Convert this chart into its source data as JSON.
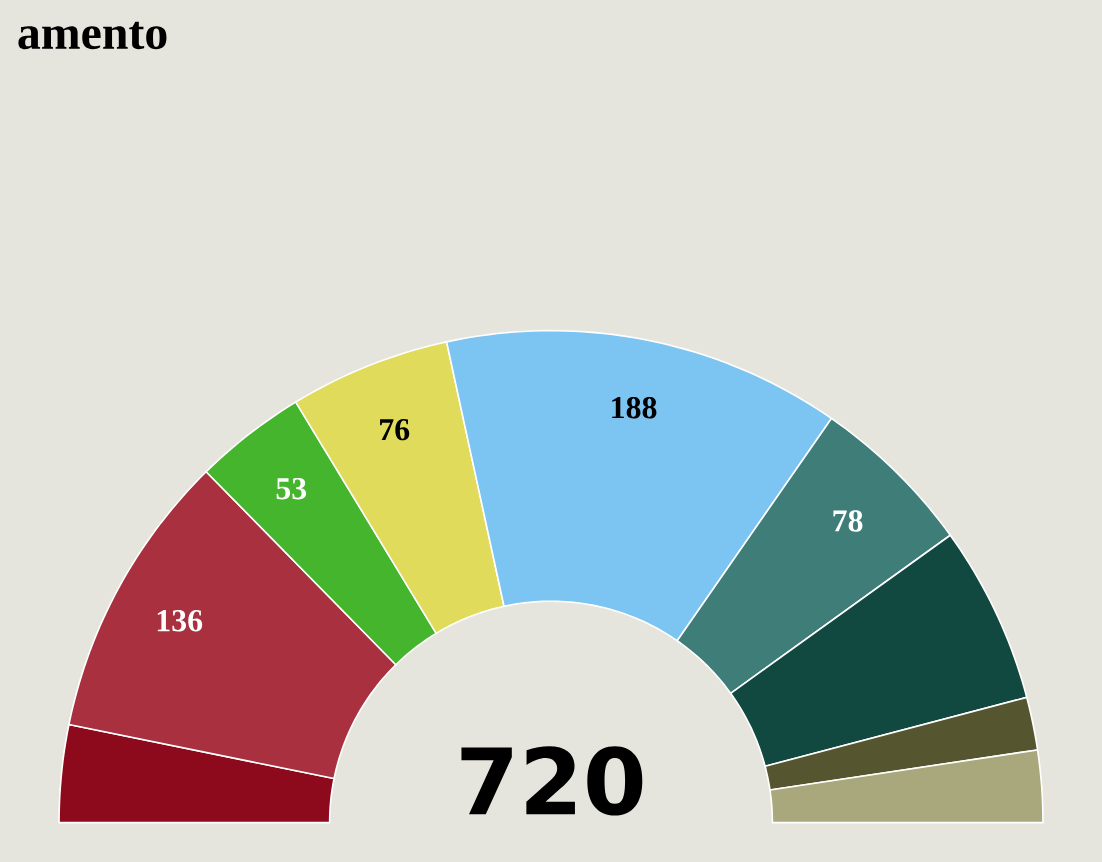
{
  "chart_data": {
    "type": "donut",
    "title": "amento",
    "annotations": [
      "720"
    ],
    "categories": [
      null,
      null,
      null,
      null,
      null,
      null,
      null,
      null,
      null
    ],
    "values": [
      46,
      136,
      53,
      76,
      188,
      78,
      84,
      25,
      34
    ],
    "value_labels": [
      null,
      "136",
      "53",
      "76",
      "188",
      "78",
      null,
      null,
      null
    ],
    "colors": [
      "#8c0a1c",
      "#a8303f",
      "#44b52c",
      "#e0db5a",
      "#7cc4f2",
      "#3f7d79",
      "#114840",
      "#55552f",
      "#a9a87c"
    ]
  }
}
